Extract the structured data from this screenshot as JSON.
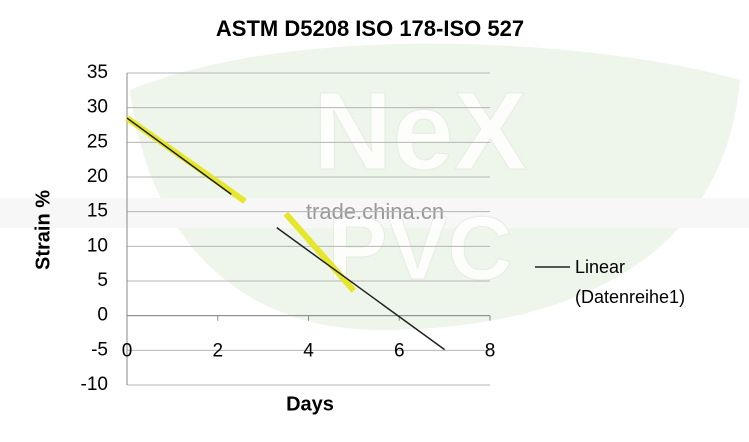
{
  "chart_data": {
    "type": "line",
    "title": "ASTM D5208 ISO 178-ISO 527",
    "xlabel": "Days",
    "ylabel": "Strain %",
    "xlim": [
      0,
      8
    ],
    "xticks": [
      0,
      2,
      4,
      6,
      8
    ],
    "ylim": [
      -10,
      35
    ],
    "yticks": [
      -10,
      -5,
      0,
      5,
      10,
      15,
      20,
      25,
      30,
      35
    ],
    "grid": true,
    "legend": "right",
    "series": [
      {
        "color": "#e6e62a",
        "x": [
          0,
          2.6,
          null,
          3.5,
          5
        ],
        "values": [
          28.5,
          16.5,
          null,
          14.7,
          3.6
        ]
      },
      {
        "name": "Linear (Datenreihe1)",
        "color": "#222222",
        "x": [
          0,
          2.3,
          null,
          3.3,
          7
        ],
        "values": [
          28.5,
          17.5,
          null,
          12.7,
          -4.9
        ]
      }
    ],
    "watermark": [
      "NeX",
      "PVC",
      "trade.china.cn"
    ]
  }
}
